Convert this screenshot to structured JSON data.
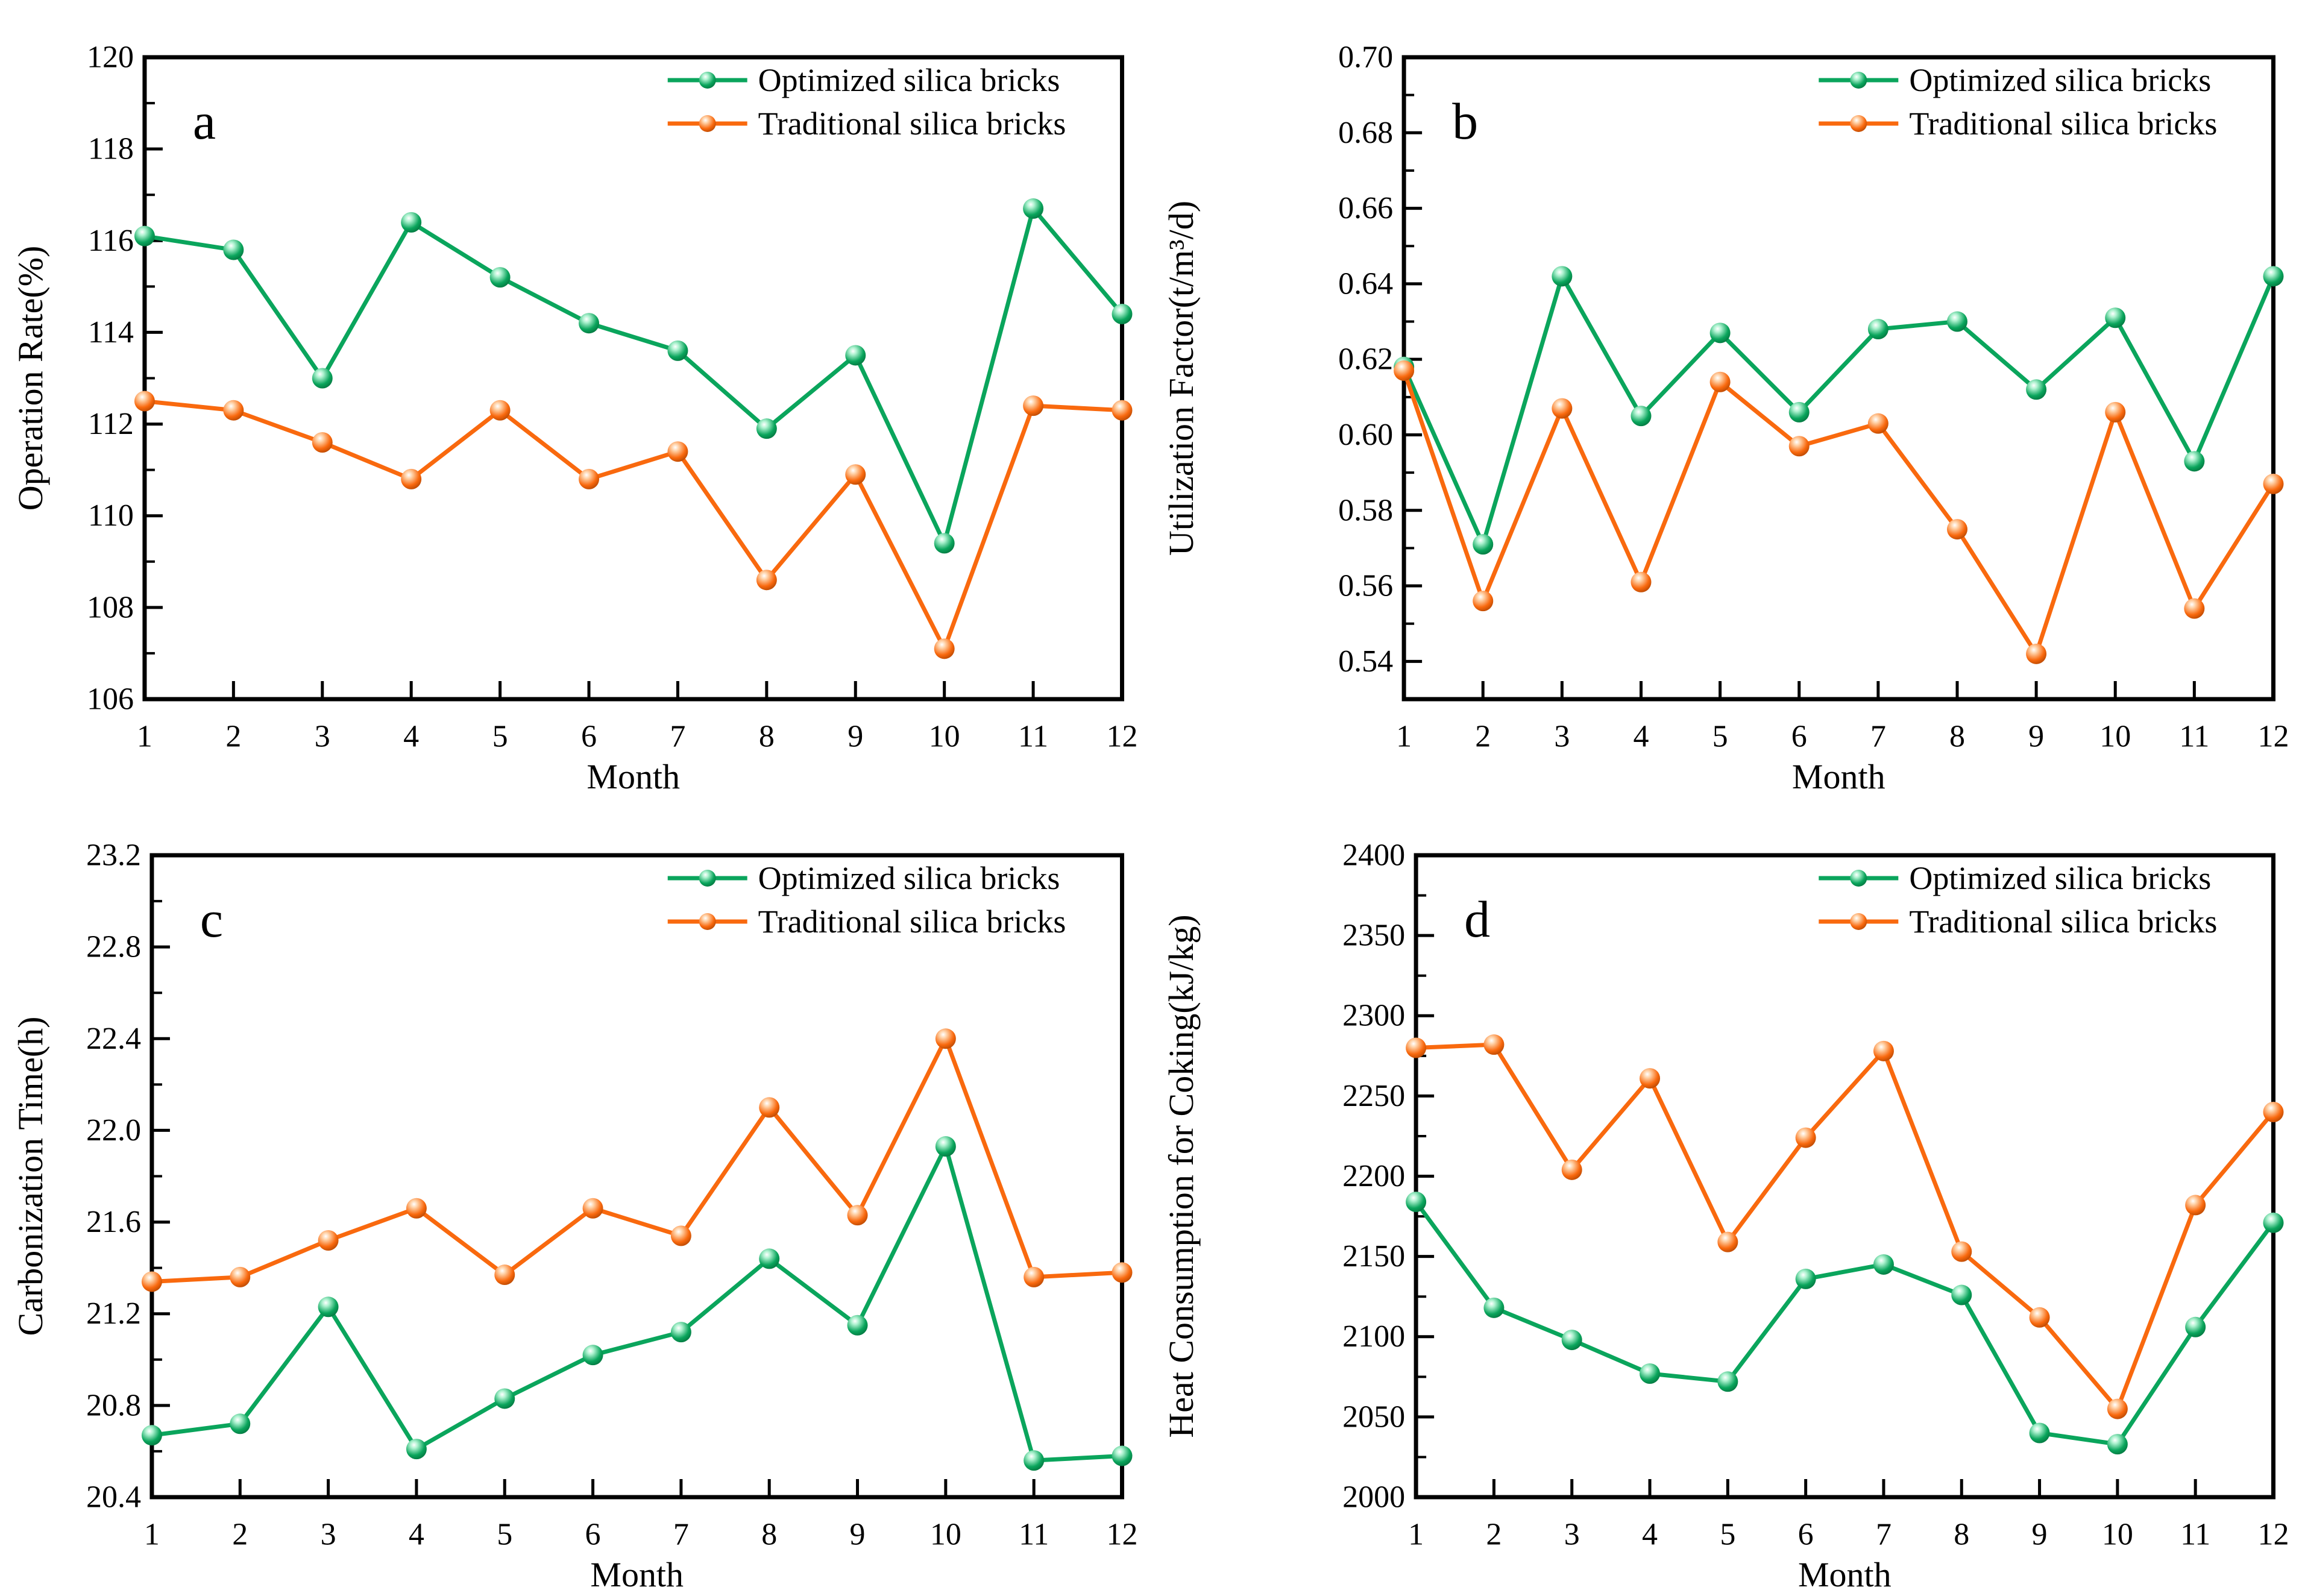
{
  "figure_background": "#ffffff",
  "colors": {
    "optimized": "#0aa55c",
    "traditional": "#f9690e",
    "axis": "#000000"
  },
  "legend": {
    "items": [
      "Optimized silica bricks",
      "Traditional silica bricks"
    ],
    "position": "top-right"
  },
  "xlabel": "Month",
  "months": [
    1,
    2,
    3,
    4,
    5,
    6,
    7,
    8,
    9,
    10,
    11,
    12
  ],
  "chart_data": [
    {
      "type": "line",
      "panel_label": "a",
      "ylabel": "Operation Rate(%)",
      "xlabel": "Month",
      "x": [
        1,
        2,
        3,
        4,
        5,
        6,
        7,
        8,
        9,
        10,
        11,
        12
      ],
      "ylim": [
        106,
        120
      ],
      "ytick_step": 2,
      "yminor_step": 1,
      "ydecimals": 0,
      "grid": "off",
      "legend_position": "top-right",
      "series": [
        {
          "name": "Optimized silica bricks",
          "color": "#0aa55c",
          "values": [
            116.1,
            115.8,
            113.0,
            116.4,
            115.2,
            114.2,
            113.6,
            111.9,
            113.5,
            109.4,
            116.7,
            114.4
          ]
        },
        {
          "name": "Traditional silica bricks",
          "color": "#f9690e",
          "values": [
            112.5,
            112.3,
            111.6,
            110.8,
            112.3,
            110.8,
            111.4,
            108.6,
            110.9,
            107.1,
            112.4,
            112.3
          ]
        }
      ]
    },
    {
      "type": "line",
      "panel_label": "b",
      "ylabel": "Utilization Factor(t/m³/d)",
      "xlabel": "Month",
      "x": [
        1,
        2,
        3,
        4,
        5,
        6,
        7,
        8,
        9,
        10,
        11,
        12
      ],
      "ylim": [
        0.53,
        0.7
      ],
      "ylabel_start": 0.54,
      "ytick_step": 0.02,
      "yminor_step": 0.01,
      "ydecimals": 2,
      "grid": "off",
      "legend_position": "top-right",
      "series": [
        {
          "name": "Optimized silica bricks",
          "color": "#0aa55c",
          "values": [
            0.618,
            0.571,
            0.642,
            0.605,
            0.627,
            0.606,
            0.628,
            0.63,
            0.612,
            0.631,
            0.593,
            0.642
          ]
        },
        {
          "name": "Traditional silica bricks",
          "color": "#f9690e",
          "values": [
            0.617,
            0.556,
            0.607,
            0.561,
            0.614,
            0.597,
            0.603,
            0.575,
            0.542,
            0.606,
            0.554,
            0.587
          ]
        }
      ]
    },
    {
      "type": "line",
      "panel_label": "c",
      "ylabel": "Carbonization Time(h)",
      "xlabel": "Month",
      "x": [
        1,
        2,
        3,
        4,
        5,
        6,
        7,
        8,
        9,
        10,
        11,
        12
      ],
      "ylim": [
        20.4,
        23.2
      ],
      "ytick_step": 0.4,
      "yminor_step": 0.2,
      "ydecimals": 1,
      "grid": "off",
      "legend_position": "top-right",
      "series": [
        {
          "name": "Optimized silica bricks",
          "color": "#0aa55c",
          "values": [
            20.67,
            20.72,
            21.23,
            20.61,
            20.83,
            21.02,
            21.12,
            21.44,
            21.15,
            21.93,
            20.56,
            20.58
          ]
        },
        {
          "name": "Traditional silica bricks",
          "color": "#f9690e",
          "values": [
            21.34,
            21.36,
            21.52,
            21.66,
            21.37,
            21.66,
            21.54,
            22.1,
            21.63,
            22.4,
            21.36,
            21.38
          ]
        }
      ]
    },
    {
      "type": "line",
      "panel_label": "d",
      "ylabel": "Heat Consumption for Coking(kJ/kg)",
      "xlabel": "Month",
      "x": [
        1,
        2,
        3,
        4,
        5,
        6,
        7,
        8,
        9,
        10,
        11,
        12
      ],
      "ylim": [
        2000,
        2400
      ],
      "ytick_step": 50,
      "yminor_step": 25,
      "ydecimals": 0,
      "grid": "off",
      "legend_position": "top-right",
      "series": [
        {
          "name": "Optimized silica bricks",
          "color": "#0aa55c",
          "values": [
            2184,
            2118,
            2098,
            2077,
            2072,
            2136,
            2145,
            2126,
            2040,
            2033,
            2106,
            2171
          ]
        },
        {
          "name": "Traditional silica bricks",
          "color": "#f9690e",
          "values": [
            2280,
            2282,
            2204,
            2261,
            2159,
            2224,
            2278,
            2153,
            2112,
            2055,
            2182,
            2240
          ]
        }
      ]
    }
  ]
}
